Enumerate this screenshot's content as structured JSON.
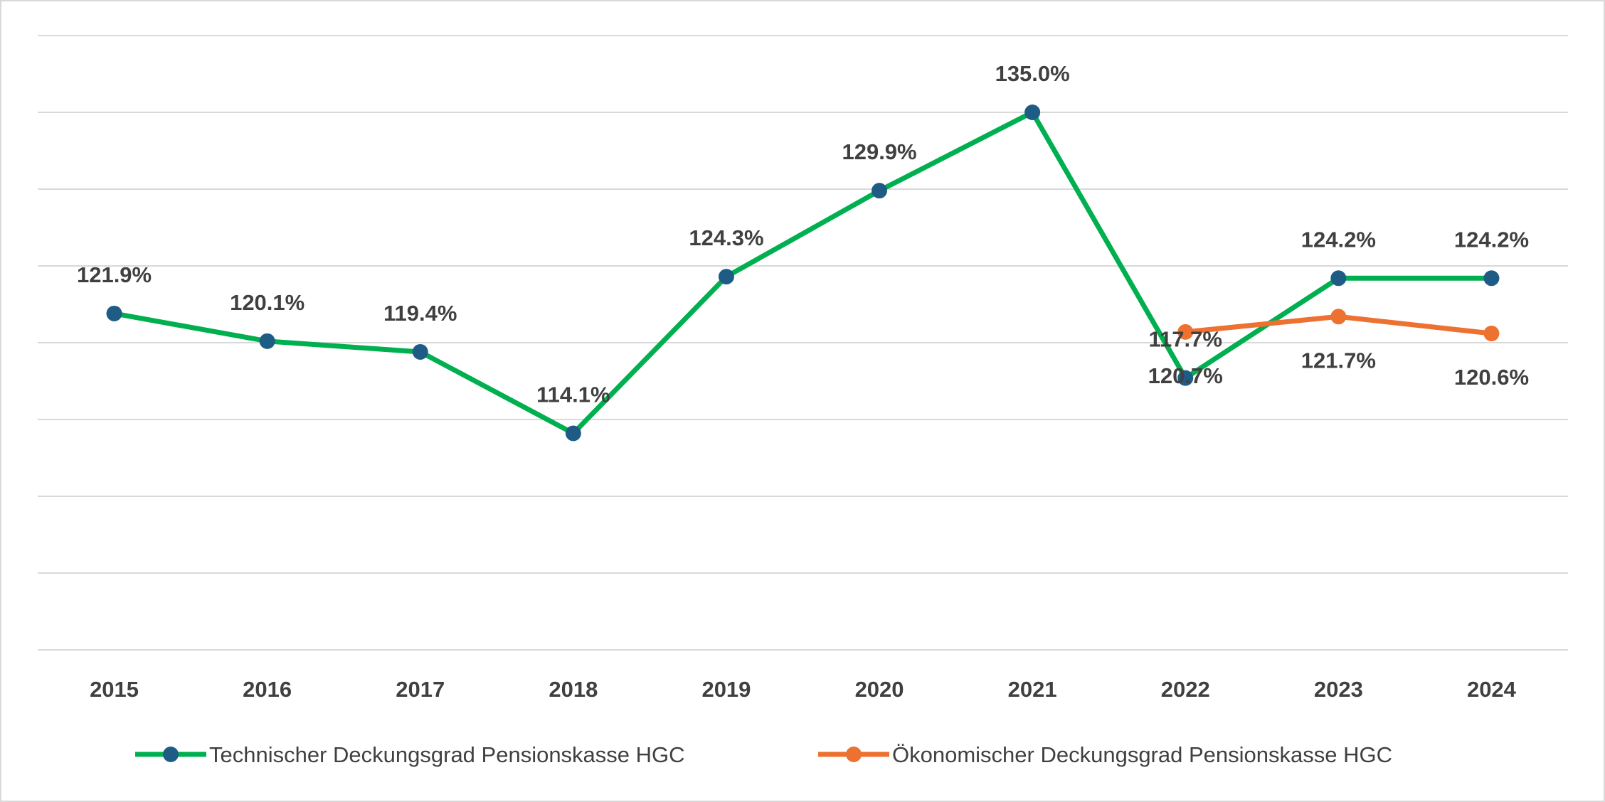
{
  "chart_data": {
    "type": "line",
    "title": "",
    "xlabel": "",
    "ylabel": "",
    "categories": [
      "2015",
      "2016",
      "2017",
      "2018",
      "2019",
      "2020",
      "2021",
      "2022",
      "2023",
      "2024"
    ],
    "ylim": [
      100,
      140
    ],
    "y_gridline_step": 5,
    "y_tick_labels_visible": false,
    "grid": true,
    "legend_position": "bottom",
    "series": [
      {
        "name": "Technischer Deckungsgrad Pensionskasse HGC",
        "line_color": "#00B050",
        "marker_color": "#1F5C85",
        "values": [
          121.9,
          120.1,
          119.4,
          114.1,
          124.3,
          129.9,
          135.0,
          117.7,
          124.2,
          124.2
        ],
        "labels": [
          "121.9%",
          "120.1%",
          "119.4%",
          "114.1%",
          "124.3%",
          "129.9%",
          "135.0%",
          "117.7%",
          "124.2%",
          "124.2%"
        ]
      },
      {
        "name": "Ökonomischer Deckungsgrad Pensionskasse HGC",
        "line_color": "#ED7131",
        "marker_color": "#ED7131",
        "values": [
          null,
          null,
          null,
          null,
          null,
          null,
          null,
          120.7,
          121.7,
          120.6
        ],
        "labels": [
          null,
          null,
          null,
          null,
          null,
          null,
          null,
          "120.7%",
          "121.7%",
          "120.6%"
        ]
      }
    ]
  }
}
